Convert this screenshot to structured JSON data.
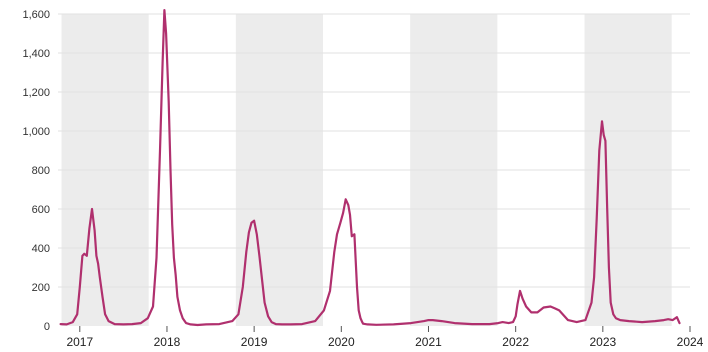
{
  "chart_data": {
    "type": "line",
    "title": "",
    "xlabel": "",
    "ylabel": "",
    "ylim": [
      0,
      1600
    ],
    "xlim": [
      2016.75,
      2024.0
    ],
    "yticks": [
      0,
      200,
      400,
      600,
      800,
      1000,
      1200,
      1400,
      1600
    ],
    "ytick_labels": [
      "0",
      "200",
      "400",
      "600",
      "800",
      "1,000",
      "1,200",
      "1,400",
      "1,600"
    ],
    "xticks": [
      2017,
      2018,
      2019,
      2020,
      2021,
      2022,
      2023,
      2024
    ],
    "xtick_labels": [
      "2017",
      "2018",
      "2019",
      "2020",
      "2021",
      "2022",
      "2023",
      "2024"
    ],
    "grid": true,
    "legend": "none",
    "shaded_bands": [
      [
        2016.79,
        2017.79
      ],
      [
        2018.79,
        2019.79
      ],
      [
        2020.79,
        2021.79
      ],
      [
        2022.79,
        2023.79
      ]
    ],
    "colors": {
      "line": "#b0306e",
      "band": "#ececec",
      "grid": "#e2e2e2"
    },
    "series": [
      {
        "x": [
          2016.78,
          2016.85,
          2016.92,
          2016.97,
          2017.0,
          2017.03,
          2017.05,
          2017.08,
          2017.11,
          2017.14,
          2017.17,
          2017.19,
          2017.21,
          2017.23,
          2017.26,
          2017.29,
          2017.33,
          2017.4,
          2017.5,
          2017.6,
          2017.7,
          2017.78,
          2017.84,
          2017.88,
          2017.92,
          2017.95,
          2017.97,
          2017.99,
          2018.02,
          2018.04,
          2018.06,
          2018.08,
          2018.1,
          2018.12,
          2018.15,
          2018.18,
          2018.22,
          2018.27,
          2018.35,
          2018.45,
          2018.6,
          2018.75,
          2018.82,
          2018.87,
          2018.91,
          2018.94,
          2018.97,
          2019.0,
          2019.03,
          2019.06,
          2019.09,
          2019.12,
          2019.16,
          2019.2,
          2019.25,
          2019.32,
          2019.42,
          2019.55,
          2019.7,
          2019.8,
          2019.87,
          2019.92,
          2019.95,
          2019.97,
          2019.99,
          2020.02,
          2020.05,
          2020.08,
          2020.1,
          2020.12,
          2020.15,
          2020.18,
          2020.2,
          2020.22,
          2020.24,
          2020.25,
          2020.3,
          2020.4,
          2020.6,
          2020.8,
          2020.95,
          2021.0,
          2021.05,
          2021.15,
          2021.3,
          2021.5,
          2021.7,
          2021.8,
          2021.85,
          2021.92,
          2021.97,
          2022.0,
          2022.02,
          2022.05,
          2022.08,
          2022.12,
          2022.18,
          2022.25,
          2022.32,
          2022.4,
          2022.45,
          2022.5,
          2022.6,
          2022.7,
          2022.8,
          2022.87,
          2022.9,
          2022.93,
          2022.96,
          2022.99,
          2023.01,
          2023.03,
          2023.05,
          2023.07,
          2023.09,
          2023.12,
          2023.15,
          2023.2,
          2023.3,
          2023.45,
          2023.6,
          2023.7,
          2023.75,
          2023.8,
          2023.85,
          2023.88
        ],
        "y": [
          10,
          8,
          20,
          60,
          200,
          360,
          370,
          360,
          500,
          600,
          490,
          360,
          320,
          250,
          150,
          60,
          25,
          10,
          8,
          10,
          15,
          40,
          100,
          350,
          900,
          1350,
          1620,
          1500,
          1150,
          800,
          520,
          350,
          260,
          150,
          80,
          40,
          15,
          8,
          5,
          8,
          10,
          25,
          60,
          200,
          380,
          480,
          530,
          540,
          470,
          360,
          240,
          120,
          50,
          20,
          10,
          8,
          8,
          10,
          25,
          80,
          180,
          380,
          470,
          500,
          530,
          580,
          650,
          620,
          570,
          460,
          470,
          200,
          80,
          40,
          20,
          12,
          8,
          6,
          8,
          15,
          25,
          30,
          30,
          25,
          15,
          10,
          10,
          15,
          20,
          15,
          20,
          50,
          110,
          180,
          140,
          100,
          70,
          70,
          95,
          100,
          90,
          80,
          30,
          20,
          30,
          120,
          250,
          550,
          900,
          1050,
          980,
          950,
          600,
          300,
          120,
          60,
          40,
          30,
          25,
          20,
          25,
          30,
          35,
          30,
          45,
          15
        ]
      }
    ]
  }
}
